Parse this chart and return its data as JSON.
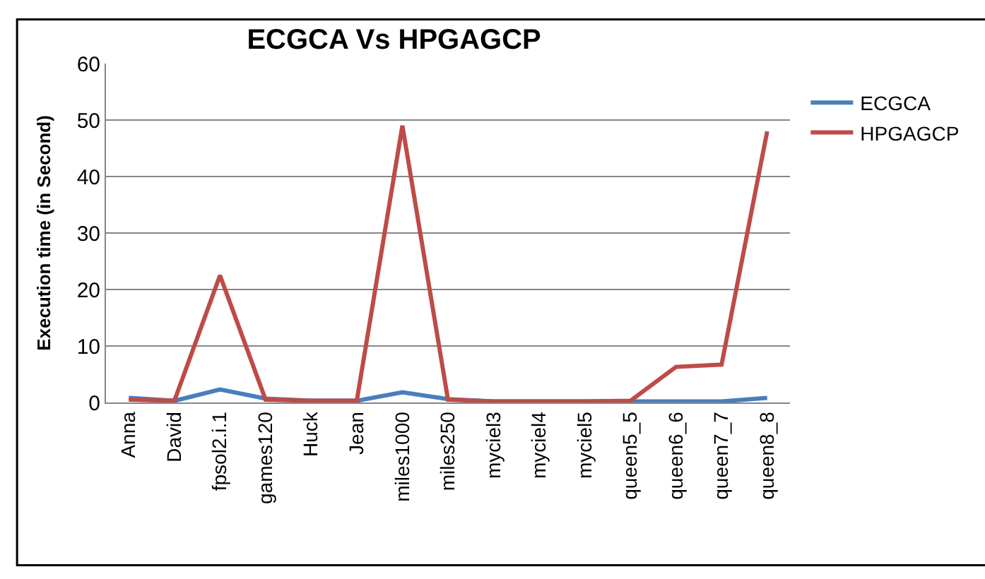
{
  "chart_data": {
    "type": "line",
    "title": "ECGCA Vs HPGAGCP",
    "ylabel": "Execution time (in Second)",
    "categories": [
      "Anna",
      "David",
      "fpsol2.i.1",
      "games120",
      "Huck",
      "Jean",
      "miles1000",
      "miles250",
      "myciel3",
      "myciel4",
      "myciel5",
      "queen5_5",
      "queen6_6",
      "queen7_7",
      "queen8_8"
    ],
    "series": [
      {
        "name": "ECGCA",
        "color": "#4a7ebb",
        "values": [
          0.8,
          0.3,
          2.3,
          0.7,
          0.3,
          0.3,
          1.8,
          0.6,
          0.2,
          0.2,
          0.2,
          0.2,
          0.2,
          0.2,
          0.8
        ]
      },
      {
        "name": "HPGAGCP",
        "color": "#be4b48",
        "values": [
          0.5,
          0.3,
          22.5,
          0.5,
          0.3,
          0.3,
          49,
          0.5,
          0.2,
          0.2,
          0.2,
          0.3,
          6.3,
          6.7,
          48
        ]
      }
    ],
    "ylim": [
      0,
      60
    ],
    "yticks": [
      0,
      10,
      20,
      30,
      40,
      50,
      60
    ],
    "grid": "y",
    "legend": "right",
    "marker": "none",
    "line_style": "solid"
  }
}
